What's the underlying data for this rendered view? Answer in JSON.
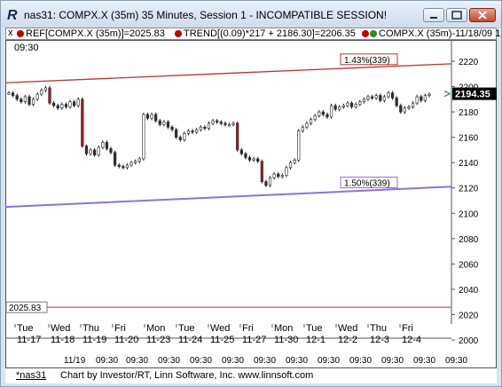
{
  "window": {
    "title": "nas31: COMPX.X (35m) 35 Minutes, Session 1 - INCOMPATIBLE SESSION!",
    "buttons": [
      "minimize",
      "maximize",
      "close"
    ]
  },
  "legend": {
    "close_symbol": "x",
    "items": [
      {
        "dot_color": "#c00000",
        "text": "REF[COMPX.X (35m)]=2025.83"
      },
      {
        "dot_color": "#c00000",
        "text": "TREND[(0.09)*217 + 2186.30]=2206.35"
      },
      {
        "dot_color": "#c00000",
        "text": "COMPX.X (35m)-11/18/09 1"
      }
    ]
  },
  "chart": {
    "time_label": "09:30",
    "last_price": "2194.35",
    "ref_label": "2025.83",
    "upper_channel_label": "1.43%(339)",
    "lower_channel_label": "1.50%(339)",
    "colors": {
      "upper_line": "#c03030",
      "lower_line": "#9070e0",
      "ref_line": "#c03030",
      "candle_up": "#ffffff",
      "candle_down": "#303030",
      "down_bar": "#a02020",
      "price_tag_bg": "#000000"
    }
  },
  "chart_data": {
    "type": "candlestick",
    "y_axis": {
      "ticks": [
        "2220",
        "2200",
        "2180",
        "2160",
        "2140",
        "2120",
        "2100",
        "2080",
        "2060",
        "2040",
        "2020",
        "2000"
      ],
      "ylim": [
        2000,
        2230
      ]
    },
    "days": [
      {
        "dow": "Tue",
        "date": "11-17"
      },
      {
        "dow": "Wed",
        "date": "11-18"
      },
      {
        "dow": "Thu",
        "date": "11-19"
      },
      {
        "dow": "Fri",
        "date": "11-20"
      },
      {
        "dow": "Mon",
        "date": "11-23"
      },
      {
        "dow": "Tue",
        "date": "11-24"
      },
      {
        "dow": "Wed",
        "date": "11-25"
      },
      {
        "dow": "Fri",
        "date": "11-27"
      },
      {
        "dow": "Mon",
        "date": "11-30"
      },
      {
        "dow": "Tue",
        "date": "12-1"
      },
      {
        "dow": "Wed",
        "date": "12-2"
      },
      {
        "dow": "Thu",
        "date": "12-3"
      },
      {
        "dow": "Fri",
        "date": "12-4"
      }
    ],
    "time_ticks": [
      "11/19",
      "09:30",
      "09:30",
      "09:30",
      "09:30",
      "09:30",
      "09:30",
      "09:30",
      "09:30",
      "09:30",
      "09:30",
      "09:30",
      "09:30"
    ],
    "ref_value": 2025.83,
    "upper_channel": {
      "start": 2203,
      "end": 2218
    },
    "lower_channel": {
      "start": 2105,
      "end": 2121
    },
    "closes": [
      2195,
      2193,
      2190,
      2188,
      2192,
      2186,
      2190,
      2194,
      2197,
      2199,
      2187,
      2185,
      2183,
      2186,
      2184,
      2188,
      2185,
      2190,
      2153,
      2147,
      2150,
      2146,
      2152,
      2156,
      2151,
      2148,
      2138,
      2137,
      2136,
      2138,
      2140,
      2141,
      2143,
      2178,
      2175,
      2178,
      2173,
      2170,
      2172,
      2168,
      2166,
      2160,
      2158,
      2163,
      2165,
      2164,
      2166,
      2168,
      2167,
      2171,
      2173,
      2172,
      2171,
      2170,
      2170,
      2171,
      2150,
      2147,
      2144,
      2142,
      2143,
      2141,
      2125,
      2122,
      2128,
      2131,
      2129,
      2130,
      2136,
      2140,
      2142,
      2165,
      2168,
      2171,
      2174,
      2177,
      2180,
      2178,
      2176,
      2185,
      2182,
      2184,
      2185,
      2187,
      2184,
      2186,
      2188,
      2190,
      2192,
      2191,
      2193,
      2189,
      2192,
      2195,
      2191,
      2185,
      2180,
      2183,
      2184,
      2187,
      2192,
      2189,
      2193,
      2194
    ]
  },
  "footer": {
    "symbol": "*nas31",
    "credit": "Chart by Investor/RT, Linn Software, Inc. www.linnsoft.com"
  }
}
